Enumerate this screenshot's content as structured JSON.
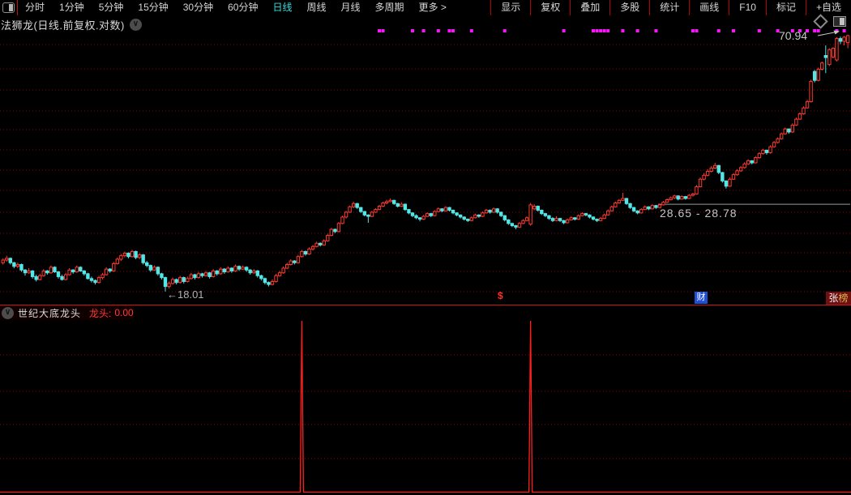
{
  "toolbar": {
    "left_items": [
      "分时",
      "1分钟",
      "5分钟",
      "15分钟",
      "30分钟",
      "60分钟",
      "日线",
      "周线",
      "月线",
      "多周期",
      "更多 >"
    ],
    "active_item": "日线",
    "right_items": [
      "显示",
      "复权",
      "叠加",
      "多股",
      "统计",
      "画线",
      "F10",
      "标记",
      "+自选"
    ]
  },
  "chart_header": {
    "title": "法狮龙(日线.前复权.对数)"
  },
  "badges": {
    "cai": "财",
    "rank_char1": "张",
    "rank_char2": "榜",
    "dividend_marker": "$"
  },
  "colors": {
    "up": "#fc3a30",
    "down": "#52e6e6",
    "dots": "#f816f8",
    "grid": "#8f0000",
    "separator": "#cf1212",
    "signal_line": "#ff1e1e",
    "range_line": "#9a9a9a"
  },
  "chart_data": {
    "type": "candlestick",
    "title": "法狮龙(日线.前复权.对数)",
    "scale": "log",
    "annotations": {
      "last_high": "70.94",
      "range": "28.65 - 28.78",
      "low": "←18.01"
    },
    "range_line_price": 28.7,
    "candles": [
      [
        21.0,
        21.5,
        20.8,
        21.3
      ],
      [
        21.3,
        21.8,
        21.1,
        21.5
      ],
      [
        21.5,
        21.6,
        20.8,
        21.0
      ],
      [
        21.0,
        21.1,
        20.4,
        20.6
      ],
      [
        20.6,
        21.0,
        20.4,
        20.8
      ],
      [
        20.8,
        20.9,
        20.0,
        20.2
      ],
      [
        20.2,
        20.3,
        19.6,
        19.9
      ],
      [
        19.9,
        20.4,
        19.8,
        20.1
      ],
      [
        20.1,
        20.2,
        19.3,
        19.5
      ],
      [
        19.5,
        19.7,
        19.0,
        19.2
      ],
      [
        19.2,
        19.8,
        19.1,
        19.6
      ],
      [
        19.6,
        20.3,
        19.5,
        20.1
      ],
      [
        20.1,
        20.2,
        19.7,
        19.9
      ],
      [
        19.9,
        20.7,
        19.8,
        20.5
      ],
      [
        20.5,
        20.6,
        19.9,
        20.0
      ],
      [
        20.0,
        20.1,
        19.3,
        19.5
      ],
      [
        19.5,
        19.7,
        19.1,
        19.2
      ],
      [
        19.2,
        19.9,
        19.1,
        19.7
      ],
      [
        19.7,
        20.4,
        19.6,
        20.2
      ],
      [
        20.2,
        20.3,
        19.8,
        20.0
      ],
      [
        20.0,
        20.7,
        19.9,
        20.5
      ],
      [
        20.5,
        20.6,
        20.0,
        20.1
      ],
      [
        20.1,
        20.2,
        19.6,
        19.8
      ],
      [
        19.8,
        19.9,
        19.2,
        19.3
      ],
      [
        19.3,
        19.5,
        18.9,
        19.1
      ],
      [
        19.1,
        19.2,
        18.7,
        18.9
      ],
      [
        18.9,
        19.6,
        18.8,
        19.4
      ],
      [
        19.4,
        19.9,
        19.2,
        19.7
      ],
      [
        19.7,
        20.5,
        19.6,
        20.3
      ],
      [
        20.3,
        20.4,
        19.9,
        20.1
      ],
      [
        20.1,
        21.1,
        20.0,
        20.9
      ],
      [
        20.9,
        21.6,
        20.8,
        21.4
      ],
      [
        21.4,
        22.0,
        21.2,
        21.8
      ],
      [
        21.8,
        22.3,
        21.6,
        22.1
      ],
      [
        22.1,
        22.2,
        21.5,
        21.7
      ],
      [
        21.7,
        22.5,
        21.6,
        22.3
      ],
      [
        22.3,
        22.4,
        21.4,
        21.6
      ],
      [
        21.6,
        22.1,
        21.4,
        21.9
      ],
      [
        21.9,
        22.0,
        20.8,
        21.0
      ],
      [
        21.0,
        21.2,
        20.5,
        20.7
      ],
      [
        20.7,
        20.8,
        20.0,
        20.2
      ],
      [
        20.2,
        20.7,
        20.1,
        20.5
      ],
      [
        20.5,
        20.6,
        19.6,
        19.8
      ],
      [
        19.8,
        19.9,
        19.2,
        19.4
      ],
      [
        19.4,
        19.5,
        18.01,
        18.5
      ],
      [
        18.5,
        19.0,
        18.3,
        18.8
      ],
      [
        18.8,
        19.4,
        18.7,
        19.2
      ],
      [
        19.2,
        19.3,
        18.7,
        18.9
      ],
      [
        18.9,
        19.6,
        18.8,
        19.4
      ],
      [
        19.4,
        19.5,
        18.8,
        19.0
      ],
      [
        19.0,
        19.5,
        18.9,
        19.3
      ],
      [
        19.3,
        19.9,
        19.2,
        19.7
      ],
      [
        19.7,
        19.8,
        19.2,
        19.4
      ],
      [
        19.4,
        20.0,
        19.3,
        19.8
      ],
      [
        19.8,
        19.9,
        19.4,
        19.6
      ],
      [
        19.6,
        20.1,
        19.5,
        19.9
      ],
      [
        19.9,
        20.0,
        19.3,
        19.5
      ],
      [
        19.5,
        20.3,
        19.4,
        20.1
      ],
      [
        20.1,
        20.2,
        19.6,
        19.8
      ],
      [
        19.8,
        20.5,
        19.7,
        20.3
      ],
      [
        20.3,
        20.4,
        19.8,
        20.0
      ],
      [
        20.0,
        20.6,
        19.9,
        20.4
      ],
      [
        20.4,
        20.5,
        19.9,
        20.1
      ],
      [
        20.1,
        20.8,
        20.0,
        20.6
      ],
      [
        20.6,
        20.7,
        20.1,
        20.3
      ],
      [
        20.3,
        20.7,
        20.2,
        20.5
      ],
      [
        20.5,
        20.6,
        20.0,
        20.2
      ],
      [
        20.2,
        20.3,
        19.7,
        19.9
      ],
      [
        19.9,
        20.3,
        19.8,
        20.1
      ],
      [
        20.1,
        20.2,
        19.4,
        19.6
      ],
      [
        19.6,
        19.7,
        19.1,
        19.3
      ],
      [
        19.3,
        19.4,
        18.7,
        18.9
      ],
      [
        18.9,
        19.0,
        18.5,
        18.7
      ],
      [
        18.7,
        19.2,
        18.6,
        19.0
      ],
      [
        19.0,
        19.8,
        18.9,
        19.6
      ],
      [
        19.6,
        20.1,
        19.5,
        19.9
      ],
      [
        19.9,
        20.6,
        19.8,
        20.4
      ],
      [
        20.4,
        21.0,
        20.3,
        20.8
      ],
      [
        20.8,
        21.4,
        20.7,
        21.2
      ],
      [
        21.2,
        21.3,
        20.8,
        21.0
      ],
      [
        21.0,
        21.9,
        20.9,
        21.7
      ],
      [
        21.7,
        22.5,
        21.6,
        22.3
      ],
      [
        22.3,
        22.4,
        21.8,
        22.0
      ],
      [
        22.0,
        22.8,
        21.9,
        22.6
      ],
      [
        22.6,
        23.1,
        22.4,
        22.9
      ],
      [
        22.9,
        23.5,
        22.8,
        23.3
      ],
      [
        23.3,
        23.4,
        22.9,
        23.1
      ],
      [
        23.1,
        23.8,
        23.0,
        23.6
      ],
      [
        23.6,
        24.5,
        23.5,
        24.3
      ],
      [
        24.3,
        25.3,
        24.2,
        25.1
      ],
      [
        25.1,
        25.2,
        24.6,
        24.8
      ],
      [
        24.8,
        26.1,
        24.7,
        25.9
      ],
      [
        25.9,
        27.0,
        25.8,
        26.8
      ],
      [
        26.8,
        27.7,
        26.6,
        27.5
      ],
      [
        27.5,
        28.5,
        27.4,
        28.3
      ],
      [
        28.3,
        29.1,
        28.1,
        28.8
      ],
      [
        28.8,
        28.9,
        28.0,
        28.2
      ],
      [
        28.2,
        28.3,
        27.4,
        27.6
      ],
      [
        27.6,
        27.7,
        26.9,
        27.1
      ],
      [
        27.1,
        27.2,
        26.0,
        26.9
      ],
      [
        26.9,
        27.7,
        26.8,
        27.5
      ],
      [
        27.5,
        28.1,
        27.4,
        27.9
      ],
      [
        27.9,
        28.6,
        27.8,
        28.4
      ],
      [
        28.4,
        29.1,
        28.3,
        28.9
      ],
      [
        28.9,
        29.4,
        28.7,
        29.1
      ],
      [
        29.1,
        29.6,
        29.0,
        29.3
      ],
      [
        29.3,
        29.4,
        28.6,
        28.8
      ],
      [
        28.8,
        28.9,
        28.2,
        28.4
      ],
      [
        28.4,
        29.0,
        28.3,
        28.7
      ],
      [
        28.7,
        28.8,
        27.7,
        27.9
      ],
      [
        27.9,
        28.0,
        27.2,
        27.4
      ],
      [
        27.4,
        27.5,
        26.8,
        27.0
      ],
      [
        27.0,
        27.2,
        26.5,
        26.7
      ],
      [
        26.7,
        26.8,
        26.2,
        26.5
      ],
      [
        26.5,
        27.1,
        26.4,
        26.9
      ],
      [
        26.9,
        27.5,
        26.8,
        27.3
      ],
      [
        27.3,
        27.4,
        26.8,
        27.0
      ],
      [
        27.0,
        27.8,
        26.9,
        27.6
      ],
      [
        27.6,
        28.2,
        27.5,
        28.0
      ],
      [
        28.0,
        28.1,
        27.5,
        27.7
      ],
      [
        27.7,
        28.4,
        27.6,
        28.2
      ],
      [
        28.2,
        28.3,
        27.6,
        27.8
      ],
      [
        27.8,
        27.9,
        27.2,
        27.4
      ],
      [
        27.4,
        27.5,
        26.9,
        27.1
      ],
      [
        27.1,
        27.2,
        26.6,
        26.8
      ],
      [
        26.8,
        26.9,
        26.3,
        26.5
      ],
      [
        26.5,
        26.6,
        26.1,
        26.3
      ],
      [
        26.3,
        26.9,
        26.2,
        26.7
      ],
      [
        26.7,
        27.3,
        26.6,
        27.1
      ],
      [
        27.1,
        27.2,
        26.7,
        26.9
      ],
      [
        26.9,
        27.6,
        26.8,
        27.4
      ],
      [
        27.4,
        28.0,
        27.3,
        27.8
      ],
      [
        27.8,
        27.9,
        27.3,
        27.5
      ],
      [
        27.5,
        28.2,
        27.4,
        28.0
      ],
      [
        28.0,
        28.1,
        27.3,
        27.5
      ],
      [
        27.5,
        27.6,
        26.8,
        27.0
      ],
      [
        27.0,
        27.1,
        26.2,
        26.4
      ],
      [
        26.4,
        26.5,
        25.7,
        25.9
      ],
      [
        25.9,
        26.0,
        25.4,
        25.6
      ],
      [
        25.6,
        25.7,
        25.1,
        25.4
      ],
      [
        25.4,
        26.1,
        25.3,
        25.9
      ],
      [
        25.9,
        26.5,
        25.8,
        26.3
      ],
      [
        26.3,
        26.9,
        26.2,
        26.7
      ],
      [
        25.8,
        28.9,
        25.6,
        28.6
      ],
      [
        28.0,
        28.7,
        27.8,
        28.4
      ],
      [
        28.4,
        28.5,
        27.6,
        27.8
      ],
      [
        27.8,
        27.9,
        27.1,
        27.3
      ],
      [
        27.3,
        27.4,
        26.8,
        27.0
      ],
      [
        27.0,
        27.1,
        26.4,
        26.6
      ],
      [
        26.6,
        26.8,
        26.1,
        26.3
      ],
      [
        26.3,
        26.9,
        26.2,
        26.6
      ],
      [
        26.6,
        26.7,
        26.1,
        26.3
      ],
      [
        26.3,
        26.4,
        25.8,
        26.0
      ],
      [
        26.0,
        26.6,
        25.9,
        26.4
      ],
      [
        26.4,
        26.9,
        26.3,
        26.7
      ],
      [
        26.7,
        26.8,
        26.3,
        26.5
      ],
      [
        26.5,
        27.2,
        26.4,
        27.0
      ],
      [
        27.0,
        27.5,
        26.9,
        27.3
      ],
      [
        27.3,
        27.4,
        26.9,
        27.1
      ],
      [
        27.1,
        27.2,
        26.6,
        26.8
      ],
      [
        26.8,
        26.9,
        26.3,
        26.5
      ],
      [
        26.5,
        26.6,
        26.1,
        26.3
      ],
      [
        26.3,
        26.8,
        26.2,
        26.6
      ],
      [
        26.6,
        27.3,
        26.5,
        27.1
      ],
      [
        27.1,
        27.9,
        27.0,
        27.7
      ],
      [
        27.7,
        28.5,
        27.6,
        28.3
      ],
      [
        28.3,
        29.1,
        28.2,
        28.9
      ],
      [
        28.9,
        29.5,
        28.8,
        29.3
      ],
      [
        29.3,
        30.5,
        29.2,
        29.6
      ],
      [
        29.6,
        29.7,
        28.6,
        28.8
      ],
      [
        28.8,
        28.9,
        28.0,
        28.2
      ],
      [
        28.2,
        28.3,
        27.5,
        27.7
      ],
      [
        27.7,
        27.8,
        27.2,
        27.4
      ],
      [
        27.4,
        28.1,
        27.3,
        27.9
      ],
      [
        27.9,
        28.5,
        27.8,
        28.3
      ],
      [
        28.3,
        28.4,
        27.8,
        28.0
      ],
      [
        28.0,
        28.7,
        27.9,
        28.5
      ],
      [
        28.5,
        28.6,
        28.0,
        28.2
      ],
      [
        28.2,
        28.8,
        28.1,
        28.6
      ],
      [
        28.6,
        29.2,
        28.5,
        29.0
      ],
      [
        29.0,
        29.6,
        28.9,
        29.4
      ],
      [
        29.4,
        29.9,
        29.3,
        29.7
      ],
      [
        29.7,
        30.2,
        29.5,
        30.0
      ],
      [
        30.0,
        30.1,
        29.3,
        29.5
      ],
      [
        29.5,
        30.1,
        29.4,
        29.9
      ],
      [
        29.9,
        30.0,
        29.4,
        29.6
      ],
      [
        29.6,
        30.3,
        29.5,
        30.1
      ],
      [
        30.1,
        30.5,
        29.9,
        30.3
      ],
      [
        30.3,
        31.8,
        30.2,
        31.5
      ],
      [
        31.5,
        33.1,
        31.4,
        32.8
      ],
      [
        32.8,
        33.9,
        32.6,
        33.5
      ],
      [
        33.5,
        34.6,
        33.3,
        34.2
      ],
      [
        34.2,
        35.2,
        34.0,
        34.8
      ],
      [
        34.8,
        35.8,
        34.6,
        35.3
      ],
      [
        35.3,
        35.4,
        33.7,
        34.0
      ],
      [
        34.0,
        34.1,
        32.2,
        32.5
      ],
      [
        32.5,
        32.6,
        31.2,
        31.6
      ],
      [
        31.6,
        33.1,
        31.5,
        32.8
      ],
      [
        32.8,
        33.9,
        32.7,
        33.6
      ],
      [
        33.6,
        34.6,
        33.4,
        34.3
      ],
      [
        34.3,
        35.2,
        34.1,
        34.9
      ],
      [
        34.9,
        35.9,
        34.7,
        35.6
      ],
      [
        35.6,
        36.5,
        35.4,
        36.2
      ],
      [
        36.2,
        36.3,
        35.5,
        35.8
      ],
      [
        35.8,
        37.1,
        35.7,
        36.8
      ],
      [
        36.8,
        37.9,
        36.6,
        37.6
      ],
      [
        37.6,
        38.6,
        37.4,
        38.3
      ],
      [
        38.3,
        38.4,
        37.4,
        37.8
      ],
      [
        37.8,
        39.3,
        37.6,
        39.0
      ],
      [
        39.0,
        40.2,
        38.8,
        39.9
      ],
      [
        39.9,
        41.0,
        39.7,
        40.7
      ],
      [
        40.7,
        42.1,
        40.5,
        41.8
      ],
      [
        41.8,
        43.2,
        41.6,
        42.9
      ],
      [
        42.9,
        43.0,
        41.8,
        42.2
      ],
      [
        42.2,
        44.2,
        42.0,
        43.8
      ],
      [
        43.8,
        45.6,
        43.6,
        45.2
      ],
      [
        45.2,
        46.9,
        45.0,
        46.5
      ],
      [
        46.5,
        48.4,
        46.3,
        48.0
      ],
      [
        48.0,
        50.1,
        47.8,
        49.6
      ],
      [
        49.6,
        55.8,
        49.4,
        55.3
      ],
      [
        58.3,
        58.8,
        55.0,
        55.6
      ],
      [
        55.6,
        59.5,
        55.3,
        59.0
      ],
      [
        59.0,
        61.5,
        58.6,
        61.0
      ],
      [
        63.5,
        67.0,
        57.8,
        62.8
      ],
      [
        60.5,
        66.0,
        60.0,
        65.5
      ],
      [
        63.0,
        66.3,
        62.5,
        66.0
      ],
      [
        62.0,
        70.0,
        61.5,
        69.5
      ],
      [
        69.5,
        70.2,
        67.5,
        68.5
      ],
      [
        68.5,
        70.5,
        67.0,
        70.0
      ],
      [
        68.0,
        70.94,
        66.0,
        70.6
      ]
    ],
    "signal_dots_indices": [
      102,
      103,
      111,
      114,
      118,
      121,
      122,
      127,
      136,
      152,
      160,
      161,
      162,
      163,
      164,
      168,
      172,
      177,
      187,
      188,
      194,
      198,
      205,
      210,
      214,
      216,
      218,
      220,
      221,
      226,
      228
    ],
    "indicator": {
      "name": "世纪大底龙头",
      "label": "龙头:",
      "value": "0.00",
      "signal_indices": [
        81,
        143
      ]
    }
  }
}
